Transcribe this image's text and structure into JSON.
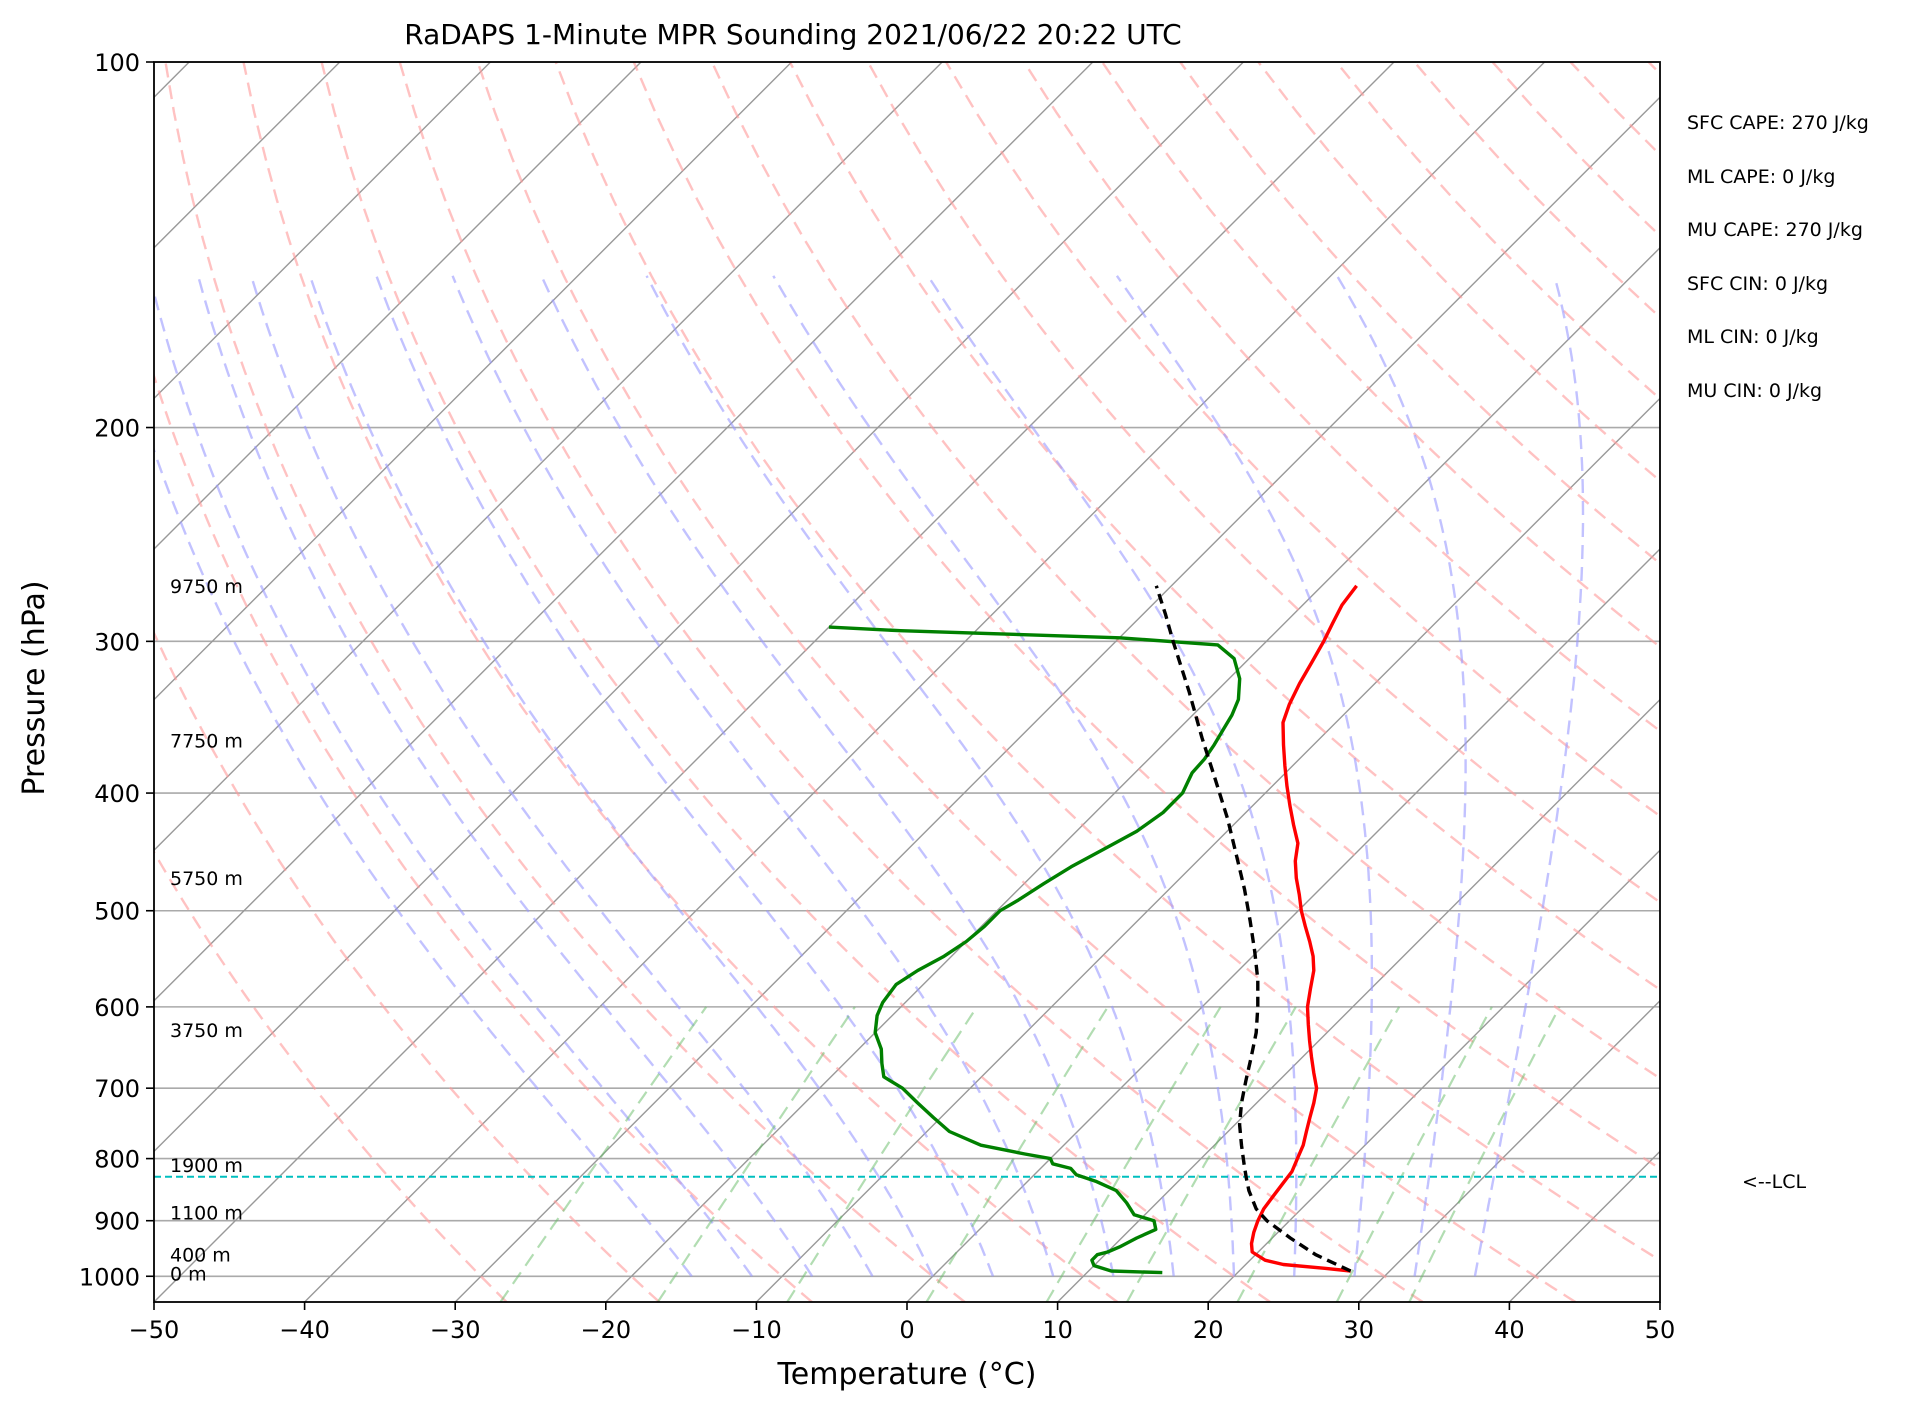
{
  "chart_data": {
    "type": "line",
    "chart_kind": "skew-t log-p sounding",
    "title": "RaDAPS 1-Minute MPR Sounding 2021/06/22 20:22 UTC",
    "xlabel": "Temperature (°C)",
    "ylabel": "Pressure (hPa)",
    "xlim": [
      -50,
      50
    ],
    "ylim": [
      1050,
      100
    ],
    "y_scale": "log",
    "x_ticks": [
      "−50",
      "−40",
      "−30",
      "−20",
      "−10",
      "0",
      "10",
      "20",
      "30",
      "40",
      "50"
    ],
    "x_tick_values": [
      -50,
      -40,
      -30,
      -20,
      -10,
      0,
      10,
      20,
      30,
      40,
      50
    ],
    "y_ticks": [
      "100",
      "200",
      "300",
      "400",
      "500",
      "600",
      "700",
      "800",
      "900",
      "1000"
    ],
    "y_tick_values": [
      100,
      200,
      300,
      400,
      500,
      600,
      700,
      800,
      900,
      1000
    ],
    "grid": true,
    "reference_lines": {
      "dry_adiabats_color": "#ff9999",
      "moist_adiabats_color": "#9999ff",
      "mixing_ratio_color": "#66bb66",
      "isotherm_color": "#999999"
    },
    "series": [
      {
        "role": "temperature",
        "color": "#ff0000",
        "points": [
          [
            990,
            27.4
          ],
          [
            985,
            25.5
          ],
          [
            978,
            22.5
          ],
          [
            970,
            21.0
          ],
          [
            955,
            19.6
          ],
          [
            940,
            19.0
          ],
          [
            920,
            18.4
          ],
          [
            900,
            17.9
          ],
          [
            880,
            17.5
          ],
          [
            860,
            17.3
          ],
          [
            840,
            17.1
          ],
          [
            820,
            16.9
          ],
          [
            800,
            16.4
          ],
          [
            780,
            15.9
          ],
          [
            760,
            15.2
          ],
          [
            740,
            14.5
          ],
          [
            720,
            13.8
          ],
          [
            700,
            13.0
          ],
          [
            680,
            11.8
          ],
          [
            660,
            10.6
          ],
          [
            640,
            9.4
          ],
          [
            620,
            8.2
          ],
          [
            600,
            7.0
          ],
          [
            580,
            6.0
          ],
          [
            560,
            5.0
          ],
          [
            545,
            4.0
          ],
          [
            530,
            2.8
          ],
          [
            515,
            1.5
          ],
          [
            500,
            0.2
          ],
          [
            485,
            -1.0
          ],
          [
            470,
            -2.3
          ],
          [
            455,
            -3.5
          ],
          [
            440,
            -4.5
          ],
          [
            425,
            -6.0
          ],
          [
            410,
            -7.5
          ],
          [
            395,
            -9.0
          ],
          [
            380,
            -10.5
          ],
          [
            365,
            -12.0
          ],
          [
            350,
            -13.5
          ],
          [
            338,
            -14.3
          ],
          [
            325,
            -15.0
          ],
          [
            312,
            -15.6
          ],
          [
            300,
            -16.2
          ],
          [
            290,
            -16.8
          ],
          [
            280,
            -17.4
          ],
          [
            270,
            -17.7
          ]
        ]
      },
      {
        "role": "dewpoint",
        "color": "#008000",
        "points": [
          [
            993,
            15.0
          ],
          [
            990,
            11.5
          ],
          [
            980,
            10.0
          ],
          [
            970,
            9.5
          ],
          [
            960,
            9.5
          ],
          [
            955,
            10.0
          ],
          [
            945,
            10.5
          ],
          [
            930,
            11.0
          ],
          [
            915,
            11.7
          ],
          [
            900,
            11.0
          ],
          [
            890,
            9.3
          ],
          [
            870,
            8.0
          ],
          [
            850,
            6.5
          ],
          [
            835,
            4.5
          ],
          [
            825,
            2.8
          ],
          [
            815,
            2.0
          ],
          [
            808,
            0.5
          ],
          [
            800,
            0.0
          ],
          [
            793,
            -2.0
          ],
          [
            780,
            -5.5
          ],
          [
            760,
            -8.5
          ],
          [
            740,
            -10.5
          ],
          [
            720,
            -12.5
          ],
          [
            700,
            -14.5
          ],
          [
            685,
            -16.5
          ],
          [
            668,
            -17.5
          ],
          [
            650,
            -18.5
          ],
          [
            630,
            -20.0
          ],
          [
            610,
            -21.0
          ],
          [
            595,
            -21.5
          ],
          [
            575,
            -21.8
          ],
          [
            560,
            -21.3
          ],
          [
            545,
            -20.5
          ],
          [
            530,
            -20.0
          ],
          [
            515,
            -19.8
          ],
          [
            500,
            -19.8
          ],
          [
            490,
            -19.3
          ],
          [
            475,
            -18.7
          ],
          [
            460,
            -18.0
          ],
          [
            445,
            -17.0
          ],
          [
            430,
            -16.0
          ],
          [
            415,
            -15.5
          ],
          [
            400,
            -15.5
          ],
          [
            385,
            -16.2
          ],
          [
            375,
            -16.3
          ],
          [
            365,
            -16.6
          ],
          [
            355,
            -17.0
          ],
          [
            345,
            -17.4
          ],
          [
            335,
            -18.0
          ],
          [
            322,
            -19.3
          ],
          [
            310,
            -21.0
          ],
          [
            302,
            -23.0
          ],
          [
            298,
            -30.0
          ],
          [
            294,
            -45.0
          ],
          [
            292,
            -50.0
          ]
        ]
      },
      {
        "role": "parcel",
        "color": "#000000",
        "points": [
          [
            990,
            27.4
          ],
          [
            960,
            24.0
          ],
          [
            930,
            21.2
          ],
          [
            900,
            18.5
          ],
          [
            880,
            17.0
          ],
          [
            850,
            15.3
          ],
          [
            830,
            14.3
          ],
          [
            810,
            13.3
          ],
          [
            780,
            11.8
          ],
          [
            750,
            10.3
          ],
          [
            720,
            9.0
          ],
          [
            690,
            7.8
          ],
          [
            660,
            6.6
          ],
          [
            630,
            5.3
          ],
          [
            600,
            3.7
          ],
          [
            570,
            1.9
          ],
          [
            540,
            -0.2
          ],
          [
            510,
            -2.5
          ],
          [
            480,
            -5.0
          ],
          [
            450,
            -7.8
          ],
          [
            420,
            -10.8
          ],
          [
            390,
            -14.2
          ],
          [
            360,
            -17.9
          ],
          [
            330,
            -21.8
          ],
          [
            300,
            -26.2
          ],
          [
            285,
            -28.5
          ],
          [
            270,
            -31.0
          ]
        ]
      }
    ],
    "lcl_pressure": 828,
    "lcl_label": "<--LCL",
    "height_labels": [
      {
        "p": 270,
        "label": "9750 m"
      },
      {
        "p": 362,
        "label": "7750 m"
      },
      {
        "p": 470,
        "label": "5750 m"
      },
      {
        "p": 627,
        "label": "3750 m"
      },
      {
        "p": 810,
        "label": "1900 m"
      },
      {
        "p": 886,
        "label": "1100 m"
      },
      {
        "p": 960,
        "label": "400 m"
      },
      {
        "p": 995,
        "label": "0 m"
      }
    ],
    "annotations": [
      "SFC CAPE: 270 J/kg",
      "ML CAPE: 0 J/kg",
      "MU CAPE: 270 J/kg",
      "SFC CIN: 0 J/kg",
      "ML CIN: 0 J/kg",
      "MU CIN: 0 J/kg"
    ]
  }
}
